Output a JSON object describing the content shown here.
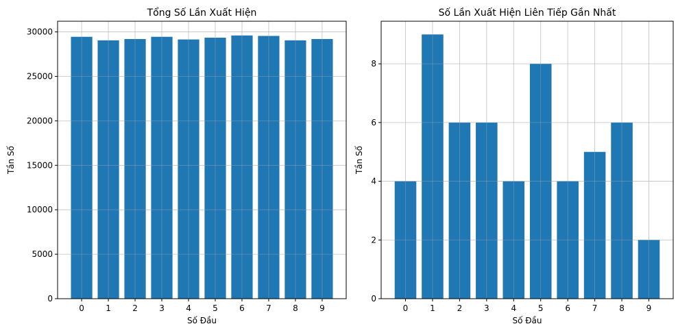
{
  "chart_data": [
    {
      "type": "bar",
      "title": "Tổng Số Lần Xuất Hiện",
      "xlabel": "Số Đầu",
      "ylabel": "Tần Số",
      "categories": [
        "0",
        "1",
        "2",
        "3",
        "4",
        "5",
        "6",
        "7",
        "8",
        "9"
      ],
      "values": [
        29450,
        29050,
        29200,
        29450,
        29150,
        29350,
        29600,
        29550,
        29050,
        29200
      ],
      "ylim": [
        0,
        31200
      ],
      "yticks": [
        0,
        5000,
        10000,
        15000,
        20000,
        25000,
        30000
      ],
      "grid": true,
      "bar_color": "#1f77b4"
    },
    {
      "type": "bar",
      "title": "Số Lần Xuất Hiện Liên Tiếp Gần Nhất",
      "xlabel": "Số Đầu",
      "ylabel": "Tần Số",
      "categories": [
        "0",
        "1",
        "2",
        "3",
        "4",
        "5",
        "6",
        "7",
        "8",
        "9"
      ],
      "values": [
        4,
        9,
        6,
        6,
        4,
        8,
        4,
        5,
        6,
        2
      ],
      "ylim": [
        0,
        9.45
      ],
      "yticks": [
        0,
        2,
        4,
        6,
        8
      ],
      "grid": true,
      "bar_color": "#1f77b4"
    }
  ]
}
